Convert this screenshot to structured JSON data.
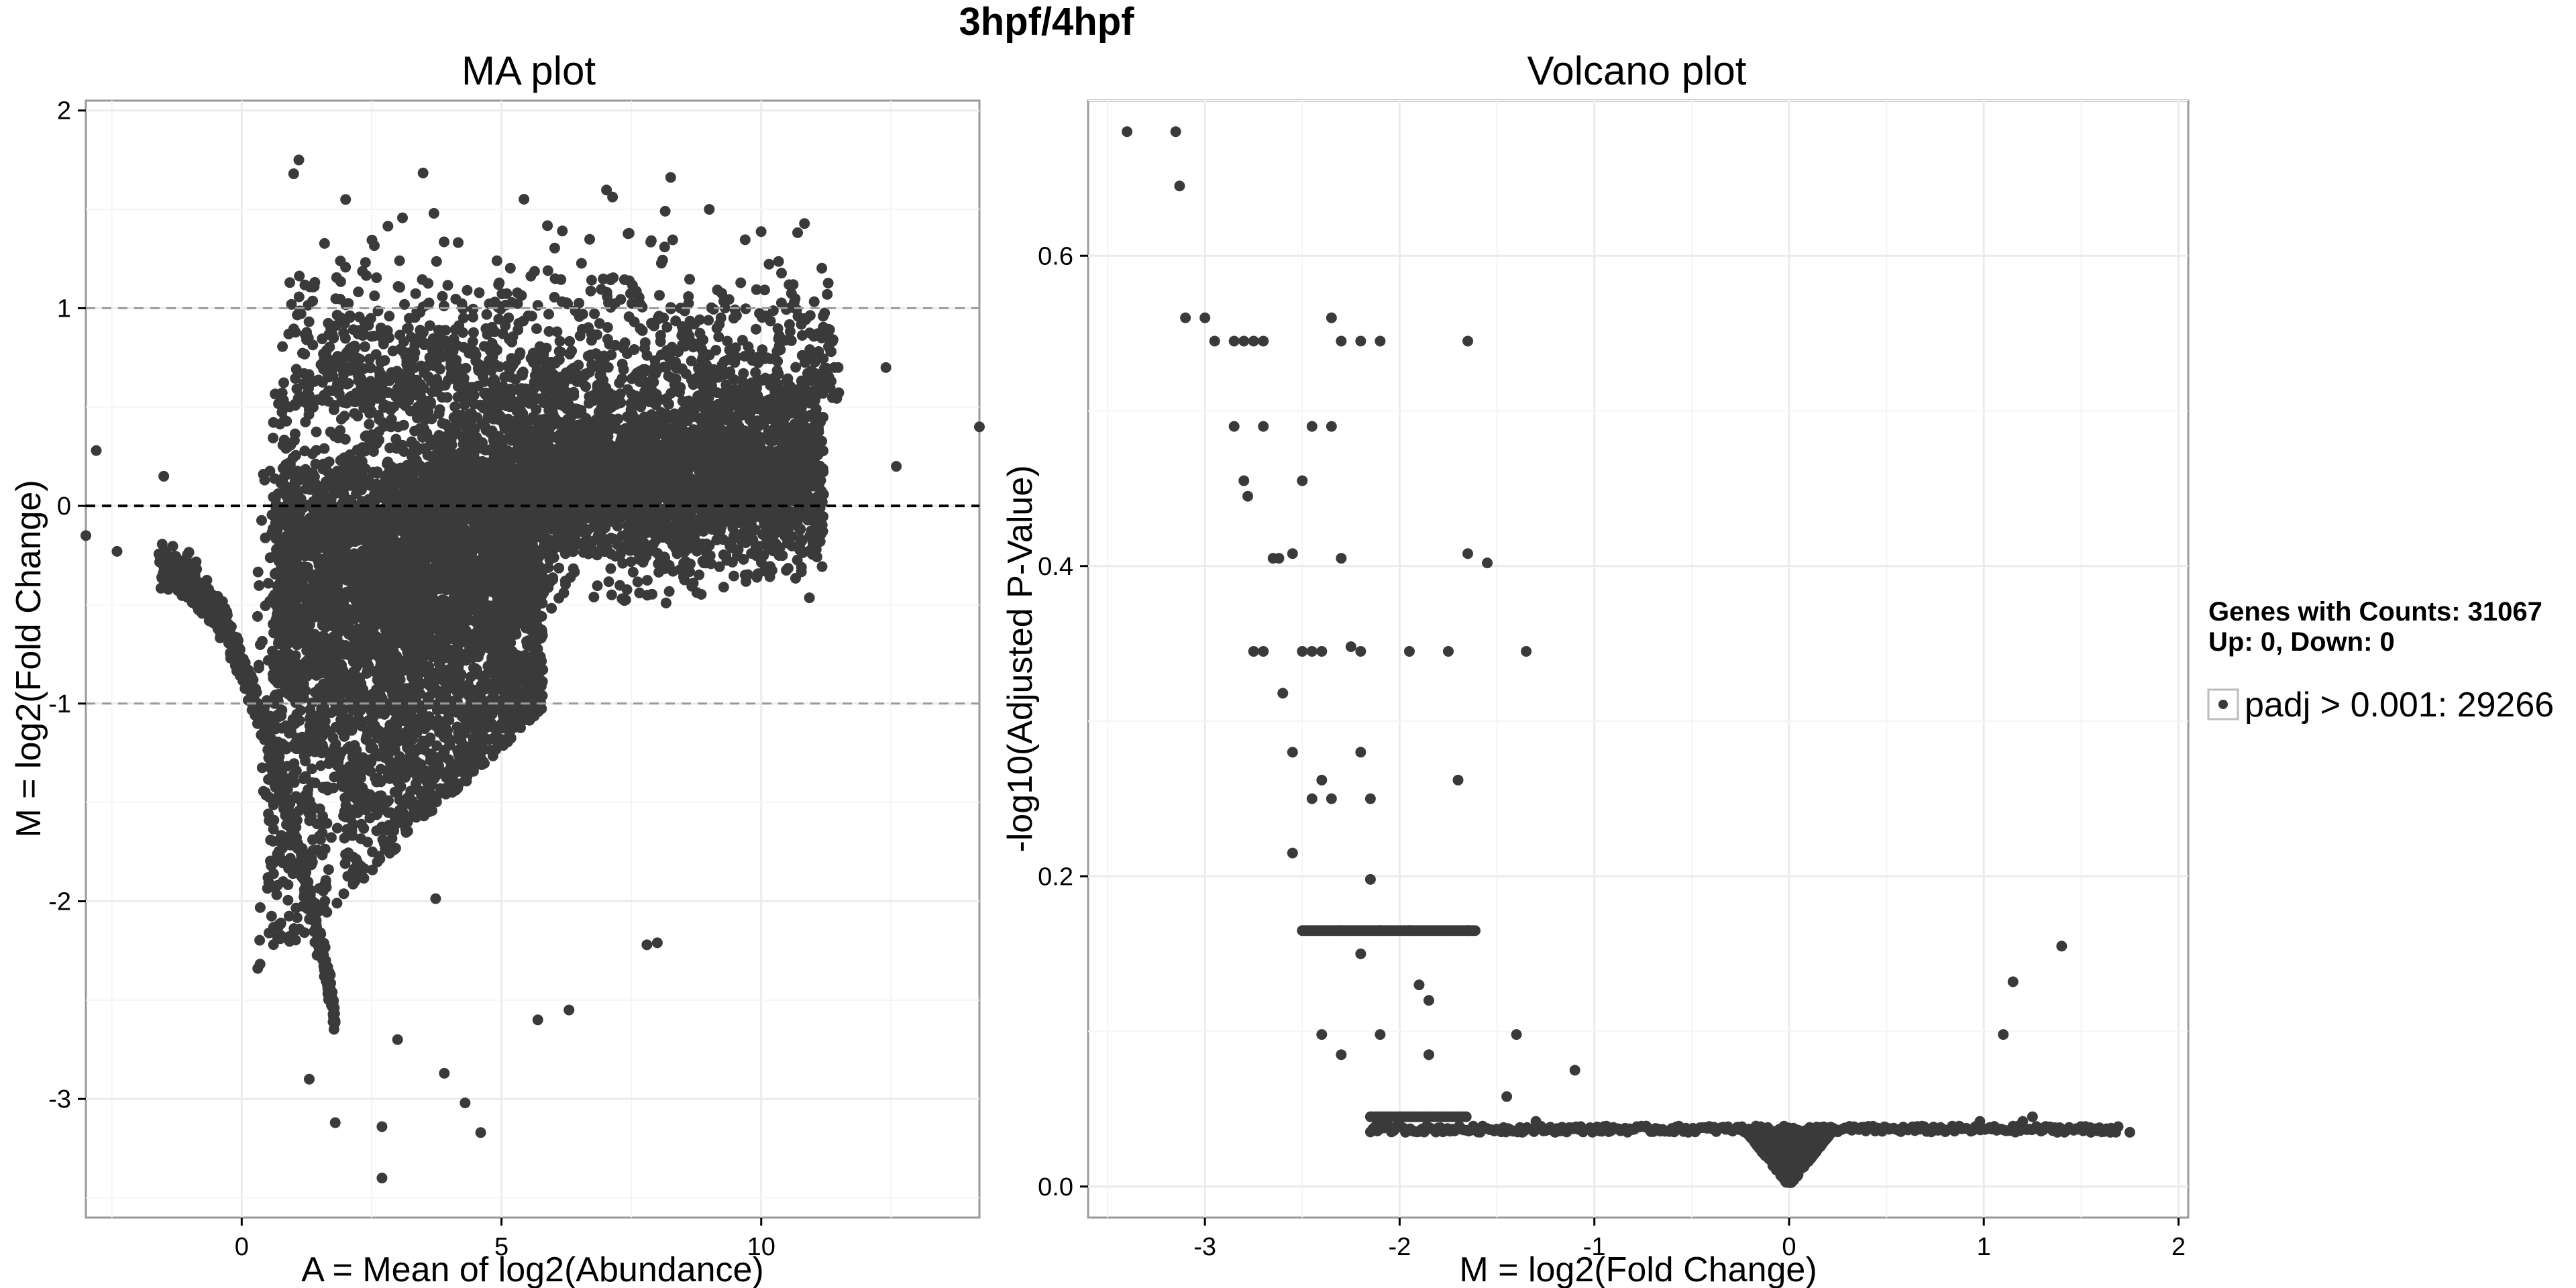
{
  "figure": {
    "title": "3hpf/4hpf"
  },
  "chart_data": [
    {
      "type": "scatter",
      "title": "MA plot",
      "xlabel": "A = Mean of log2(Abundance)",
      "ylabel": "M = log2(Fold Change)",
      "xlim": [
        -3,
        14.2
      ],
      "ylim": [
        -3.6,
        2.05
      ],
      "xticks": [
        0,
        5,
        10
      ],
      "yticks": [
        -3,
        -2,
        -1,
        0,
        1,
        2
      ],
      "grid": true,
      "point_color": "#3a3a3a",
      "reference_lines": [
        {
          "y": 1,
          "style": "dashed",
          "color": "#9a9a9a"
        },
        {
          "y": 0,
          "style": "dashed",
          "color": "#000000"
        },
        {
          "y": -1,
          "style": "dashed",
          "color": "#9a9a9a"
        }
      ],
      "point_cloud": "dense cloud of ~31000 genes; fan shape widening toward negative M at low A, centered near M=0 for A from 0 to 11",
      "outliers": [
        {
          "x": -2.8,
          "y": 0.28
        },
        {
          "x": -3.0,
          "y": -0.15
        },
        {
          "x": -2.4,
          "y": -0.23
        },
        {
          "x": -1.5,
          "y": 0.15
        },
        {
          "x": 1.1,
          "y": 1.75
        },
        {
          "x": 1.0,
          "y": 1.68
        },
        {
          "x": 2.0,
          "y": 1.55
        },
        {
          "x": 3.7,
          "y": 1.48
        },
        {
          "x": 9.0,
          "y": 1.5
        },
        {
          "x": 14.2,
          "y": 0.4
        },
        {
          "x": 12.6,
          "y": 0.2
        },
        {
          "x": 12.4,
          "y": 0.7
        },
        {
          "x": 2.7,
          "y": -3.4
        },
        {
          "x": 4.6,
          "y": -3.17
        },
        {
          "x": 4.3,
          "y": -3.02
        },
        {
          "x": 1.8,
          "y": -3.12
        },
        {
          "x": 2.7,
          "y": -3.14
        },
        {
          "x": 3.9,
          "y": -2.87
        },
        {
          "x": 5.7,
          "y": -2.6
        },
        {
          "x": 6.3,
          "y": -2.55
        },
        {
          "x": 7.8,
          "y": -2.22
        },
        {
          "x": 8.0,
          "y": -2.21
        },
        {
          "x": 1.3,
          "y": -2.9
        },
        {
          "x": 3.0,
          "y": -2.7
        }
      ]
    },
    {
      "type": "scatter",
      "title": "Volcano plot",
      "xlabel": "M = log2(Fold Change)",
      "ylabel": "-log10(Adjusted P-Value)",
      "xlim": [
        -3.6,
        2.05
      ],
      "ylim": [
        -0.02,
        0.7
      ],
      "xticks": [
        -3,
        -2,
        -1,
        0,
        1,
        2
      ],
      "yticks": [
        0.0,
        0.2,
        0.4,
        0.6
      ],
      "ytick_labels": [
        "0.0",
        "0.2",
        "0.4",
        "0.6"
      ],
      "grid": true,
      "point_color": "#3a3a3a",
      "points": [
        {
          "x": -3.4,
          "y": 0.68
        },
        {
          "x": -3.15,
          "y": 0.68
        },
        {
          "x": -3.13,
          "y": 0.645
        },
        {
          "x": -3.1,
          "y": 0.56
        },
        {
          "x": -3.0,
          "y": 0.56
        },
        {
          "x": -2.95,
          "y": 0.545
        },
        {
          "x": -2.85,
          "y": 0.545
        },
        {
          "x": -2.8,
          "y": 0.545
        },
        {
          "x": -2.75,
          "y": 0.545
        },
        {
          "x": -2.7,
          "y": 0.545
        },
        {
          "x": -2.35,
          "y": 0.56
        },
        {
          "x": -2.3,
          "y": 0.545
        },
        {
          "x": -2.2,
          "y": 0.545
        },
        {
          "x": -2.1,
          "y": 0.545
        },
        {
          "x": -1.65,
          "y": 0.545
        },
        {
          "x": -2.85,
          "y": 0.49
        },
        {
          "x": -2.7,
          "y": 0.49
        },
        {
          "x": -2.45,
          "y": 0.49
        },
        {
          "x": -2.35,
          "y": 0.49
        },
        {
          "x": -2.8,
          "y": 0.455
        },
        {
          "x": -2.78,
          "y": 0.445
        },
        {
          "x": -2.5,
          "y": 0.455
        },
        {
          "x": -2.65,
          "y": 0.405
        },
        {
          "x": -2.62,
          "y": 0.405
        },
        {
          "x": -2.55,
          "y": 0.408
        },
        {
          "x": -2.3,
          "y": 0.405
        },
        {
          "x": -1.65,
          "y": 0.408
        },
        {
          "x": -1.55,
          "y": 0.402
        },
        {
          "x": -2.75,
          "y": 0.345
        },
        {
          "x": -2.7,
          "y": 0.345
        },
        {
          "x": -2.5,
          "y": 0.345
        },
        {
          "x": -2.45,
          "y": 0.345
        },
        {
          "x": -2.4,
          "y": 0.345
        },
        {
          "x": -2.25,
          "y": 0.348
        },
        {
          "x": -2.2,
          "y": 0.345
        },
        {
          "x": -1.95,
          "y": 0.345
        },
        {
          "x": -1.75,
          "y": 0.345
        },
        {
          "x": -1.35,
          "y": 0.345
        },
        {
          "x": -2.6,
          "y": 0.318
        },
        {
          "x": -2.55,
          "y": 0.28
        },
        {
          "x": -2.2,
          "y": 0.28
        },
        {
          "x": -2.4,
          "y": 0.262
        },
        {
          "x": -2.45,
          "y": 0.25
        },
        {
          "x": -2.35,
          "y": 0.25
        },
        {
          "x": -2.15,
          "y": 0.25
        },
        {
          "x": -1.7,
          "y": 0.262
        },
        {
          "x": -2.55,
          "y": 0.215
        },
        {
          "x": -2.15,
          "y": 0.198
        },
        {
          "x": -2.3,
          "y": 0.165
        },
        {
          "x": -2.1,
          "y": 0.165
        },
        {
          "x": -1.95,
          "y": 0.165
        },
        {
          "x": -1.65,
          "y": 0.165
        },
        {
          "x": -2.2,
          "y": 0.15
        },
        {
          "x": -1.9,
          "y": 0.13
        },
        {
          "x": -1.85,
          "y": 0.12
        },
        {
          "x": -2.4,
          "y": 0.098
        },
        {
          "x": -2.1,
          "y": 0.098
        },
        {
          "x": -1.85,
          "y": 0.085
        },
        {
          "x": -2.3,
          "y": 0.085
        },
        {
          "x": -1.4,
          "y": 0.098
        },
        {
          "x": -1.45,
          "y": 0.058
        },
        {
          "x": -1.1,
          "y": 0.075
        },
        {
          "x": -1.3,
          "y": 0.042
        },
        {
          "x": 1.1,
          "y": 0.098
        },
        {
          "x": 1.15,
          "y": 0.132
        },
        {
          "x": 1.4,
          "y": 0.155
        },
        {
          "x": 0.98,
          "y": 0.042
        },
        {
          "x": 1.2,
          "y": 0.042
        },
        {
          "x": 1.25,
          "y": 0.045
        },
        {
          "x": 1.55,
          "y": 0.035
        },
        {
          "x": 1.65,
          "y": 0.035
        },
        {
          "x": 1.75,
          "y": 0.035
        }
      ],
      "bands": [
        {
          "y": 0.165,
          "x_range": [
            -2.5,
            -1.6
          ]
        },
        {
          "y": 0.045,
          "x_range": [
            -2.15,
            -1.65
          ]
        },
        {
          "y": 0.035,
          "x_range": [
            -2.15,
            1.7
          ]
        }
      ],
      "v_cluster": "dense V-shaped cluster near x=0 descending to y=0.0"
    }
  ],
  "legend": {
    "placement": "right",
    "header_line1": "Genes with Counts: 31067",
    "header_line2": "Up: 0, Down: 0",
    "entries": [
      {
        "label": "padj > 0.001: 29266",
        "color": "#3a3a3a"
      }
    ]
  }
}
